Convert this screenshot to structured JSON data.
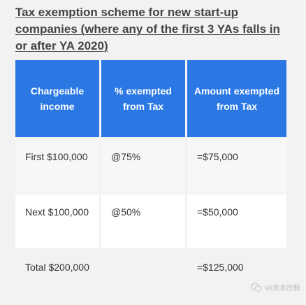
{
  "title": "Tax exemption scheme for new start-up companies (where any of the first 3 YAs falls in or after YA 2020)",
  "table": {
    "headers": [
      "Chargeable income",
      "% exempted from Tax",
      "Amount exempted from Tax"
    ],
    "rows": [
      [
        "First $100,000",
        "@75%",
        "=$75,000"
      ],
      [
        "Next $100,000",
        "@50%",
        "=$50,000"
      ],
      [
        "Total $200,000",
        "",
        "=$125,000"
      ]
    ]
  },
  "watermark": {
    "text": "96资本控股",
    "icon": "wechat-icon"
  },
  "colors": {
    "header_bg": "#2b78e4",
    "header_text": "#ffffff",
    "title_text": "#444444",
    "page_bg": "#f2f2f2"
  }
}
